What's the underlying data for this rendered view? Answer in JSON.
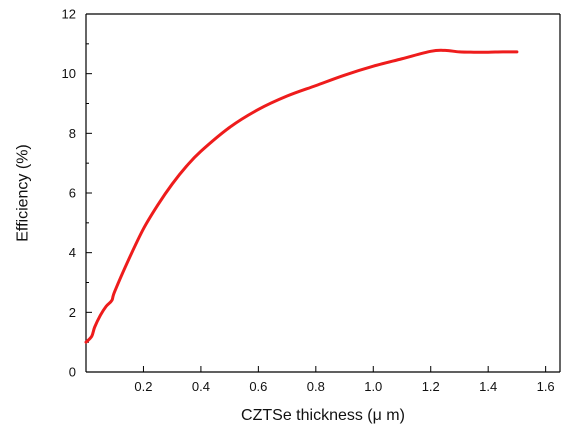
{
  "chart_data": {
    "type": "line",
    "title": "",
    "xlabel": "CZTSe thickness (μ m)",
    "ylabel": "Efficiency (%)",
    "xlim": [
      0.0,
      1.65
    ],
    "ylim": [
      0,
      12
    ],
    "x_ticks": [
      0.2,
      0.4,
      0.6,
      0.8,
      1.0,
      1.2,
      1.4,
      1.6
    ],
    "x_tick_labels": [
      "0.2",
      "0.4",
      "0.6",
      "0.8",
      "1.0",
      "1.2",
      "1.4",
      "1.6"
    ],
    "y_ticks": [
      0,
      2,
      4,
      6,
      8,
      10,
      12
    ],
    "y_tick_labels": [
      "0",
      "2",
      "4",
      "6",
      "8",
      "10",
      "12"
    ],
    "grid": false,
    "legend": "none",
    "series": [
      {
        "color": "#ee1c1c",
        "x": [
          0.0,
          0.02,
          0.03,
          0.05,
          0.07,
          0.09,
          0.1,
          0.15,
          0.2,
          0.25,
          0.3,
          0.35,
          0.4,
          0.5,
          0.6,
          0.7,
          0.8,
          0.9,
          1.0,
          1.1,
          1.2,
          1.25,
          1.3,
          1.35,
          1.4,
          1.45,
          1.5
        ],
        "y": [
          1.0,
          1.2,
          1.5,
          1.9,
          2.2,
          2.4,
          2.7,
          3.8,
          4.8,
          5.6,
          6.3,
          6.9,
          7.4,
          8.2,
          8.8,
          9.25,
          9.6,
          9.95,
          10.25,
          10.5,
          10.75,
          10.78,
          10.73,
          10.72,
          10.72,
          10.73,
          10.73
        ]
      }
    ]
  }
}
